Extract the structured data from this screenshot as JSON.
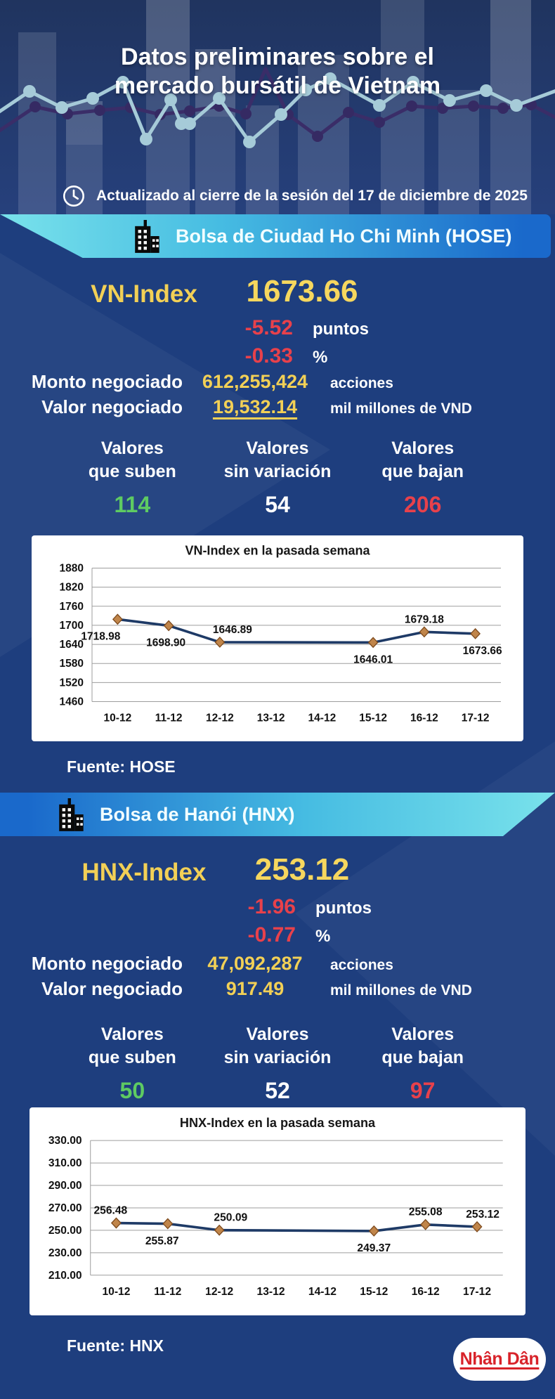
{
  "colors": {
    "page_bg": "#1e3e7e",
    "header_bg": "#26407c",
    "accent_yellow": "#f2d056",
    "accent_yellow_bright": "#f6d75e",
    "negative_red": "#e8414b",
    "positive_green": "#5ecb62",
    "banner_cyan": "#79e2eb",
    "banner_blue": "#1a69cb",
    "chart_line": "#1e3a66",
    "chart_marker": "#c0854a",
    "logo_red": "#d8232a"
  },
  "header": {
    "title_line1": "Datos preliminares sobre el",
    "title_line2": "mercado bursátil de Vietnam",
    "updated": "Actualizado al cierre de la sesión del 17 de diciembre de 2025"
  },
  "hose": {
    "banner": "Bolsa de Ciudad Ho Chi Minh (HOSE)",
    "index_label": "VN-Index",
    "index_value": "1673.66",
    "change_points": "-5.52",
    "points_unit": "puntos",
    "change_percent": "-0.33",
    "percent_unit": "%",
    "volume_label": "Monto negociado",
    "volume_value": "612,255,424",
    "volume_unit": "acciones",
    "turnover_label": "Valor negociado",
    "turnover_value": "19,532.14",
    "turnover_unit": "mil millones de VND",
    "stats": [
      {
        "line1": "Valores",
        "line2": "que suben",
        "value": "114"
      },
      {
        "line1": "Valores",
        "line2": "sin variación",
        "value": "54"
      },
      {
        "line1": "Valores",
        "line2": "que bajan",
        "value": "206"
      }
    ],
    "source": "Fuente: HOSE"
  },
  "hnx": {
    "banner": "Bolsa de Hanói (HNX)",
    "index_label": "HNX-Index",
    "index_value": "253.12",
    "change_points": "-1.96",
    "points_unit": "puntos",
    "change_percent": "-0.77",
    "percent_unit": "%",
    "volume_label": "Monto negociado",
    "volume_value": "47,092,287",
    "volume_unit": "acciones",
    "turnover_label": "Valor negociado",
    "turnover_value": "917.49",
    "turnover_unit": "mil millones de VND",
    "stats": [
      {
        "line1": "Valores",
        "line2": "que suben",
        "value": "50"
      },
      {
        "line1": "Valores",
        "line2": "sin variación",
        "value": "52"
      },
      {
        "line1": "Valores",
        "line2": "que bajan",
        "value": "97"
      }
    ],
    "source": "Fuente: HNX"
  },
  "chart_data": [
    {
      "type": "line",
      "title": "VN-Index en la pasada semana",
      "categories": [
        "10-12",
        "11-12",
        "12-12",
        "13-12",
        "14-12",
        "15-12",
        "16-12",
        "17-12"
      ],
      "values": [
        1718.98,
        1698.9,
        1646.89,
        null,
        null,
        1646.01,
        1679.18,
        1673.66
      ],
      "point_labels": [
        "1718.98",
        "1698.90",
        "1646.89",
        null,
        null,
        "1646.01",
        "1679.18",
        "1673.66"
      ],
      "y_tick_labels": [
        "1880",
        "1820",
        "1760",
        "1700",
        "1640",
        "1580",
        "1520",
        "1460"
      ],
      "ylim": [
        1460,
        1880
      ],
      "grid": true,
      "legend": false,
      "label_hints": [
        {
          "pos": "below",
          "dx": -24
        },
        {
          "pos": "below",
          "dx": -4
        },
        {
          "pos": "above",
          "dx": 18
        },
        null,
        null,
        {
          "pos": "below",
          "dx": 0
        },
        {
          "pos": "above",
          "dx": 0
        },
        {
          "pos": "below",
          "dx": 10
        }
      ]
    },
    {
      "type": "line",
      "title": "HNX-Index en la pasada semana",
      "categories": [
        "10-12",
        "11-12",
        "12-12",
        "13-12",
        "14-12",
        "15-12",
        "16-12",
        "17-12"
      ],
      "values": [
        256.48,
        255.87,
        250.09,
        null,
        null,
        249.37,
        255.08,
        253.12
      ],
      "point_labels": [
        "256.48",
        "255.87",
        "250.09",
        null,
        null,
        "249.37",
        "255.08",
        "253.12"
      ],
      "y_tick_labels": [
        "330.00",
        "310.00",
        "290.00",
        "270.00",
        "250.00",
        "230.00",
        "210.00"
      ],
      "ylim": [
        210,
        330
      ],
      "grid": true,
      "legend": false,
      "label_hints": [
        {
          "pos": "above",
          "dx": -8
        },
        {
          "pos": "below",
          "dx": -8
        },
        {
          "pos": "above",
          "dx": 16
        },
        null,
        null,
        {
          "pos": "below",
          "dx": 0
        },
        {
          "pos": "above",
          "dx": 0
        },
        {
          "pos": "above",
          "dx": 8
        }
      ]
    }
  ],
  "footer": {
    "logo_text": "Nhân Dân"
  }
}
